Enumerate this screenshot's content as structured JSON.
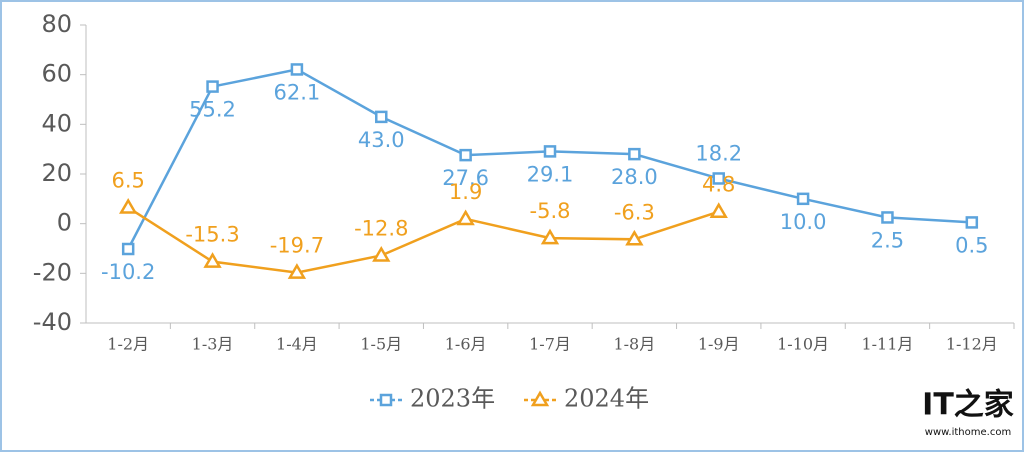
{
  "chart_data": {
    "type": "line",
    "categories": [
      "1-2月",
      "1-3月",
      "1-4月",
      "1-5月",
      "1-6月",
      "1-7月",
      "1-8月",
      "1-9月",
      "1-10月",
      "1-11月",
      "1-12月"
    ],
    "series": [
      {
        "name": "2023年",
        "color": "#5ba3dc",
        "marker": "square",
        "values": [
          -10.2,
          55.2,
          62.1,
          43.0,
          27.6,
          29.1,
          28.0,
          18.2,
          10.0,
          2.5,
          0.5
        ],
        "value_labels": [
          "-10.2",
          "55.2",
          "62.1",
          "43.0",
          "27.6",
          "29.1",
          "28.0",
          "18.2",
          "10.0",
          "2.5",
          "0.5"
        ]
      },
      {
        "name": "2024年",
        "color": "#f0a01e",
        "marker": "triangle",
        "values": [
          6.5,
          -15.3,
          -19.7,
          -12.8,
          1.9,
          -5.8,
          -6.3,
          4.8,
          null,
          null,
          null
        ],
        "value_labels": [
          "6.5",
          "-15.3",
          "-19.7",
          "-12.8",
          "1.9",
          "-5.8",
          "-6.3",
          "4.8",
          null,
          null,
          null
        ]
      }
    ],
    "ylim": [
      -40,
      80
    ],
    "yticks": [
      -40,
      -20,
      0,
      20,
      40,
      60,
      80
    ],
    "grid": false,
    "legend": "bottom",
    "watermark": {
      "logo": "IT之家",
      "url": "www.ithome.com"
    }
  }
}
